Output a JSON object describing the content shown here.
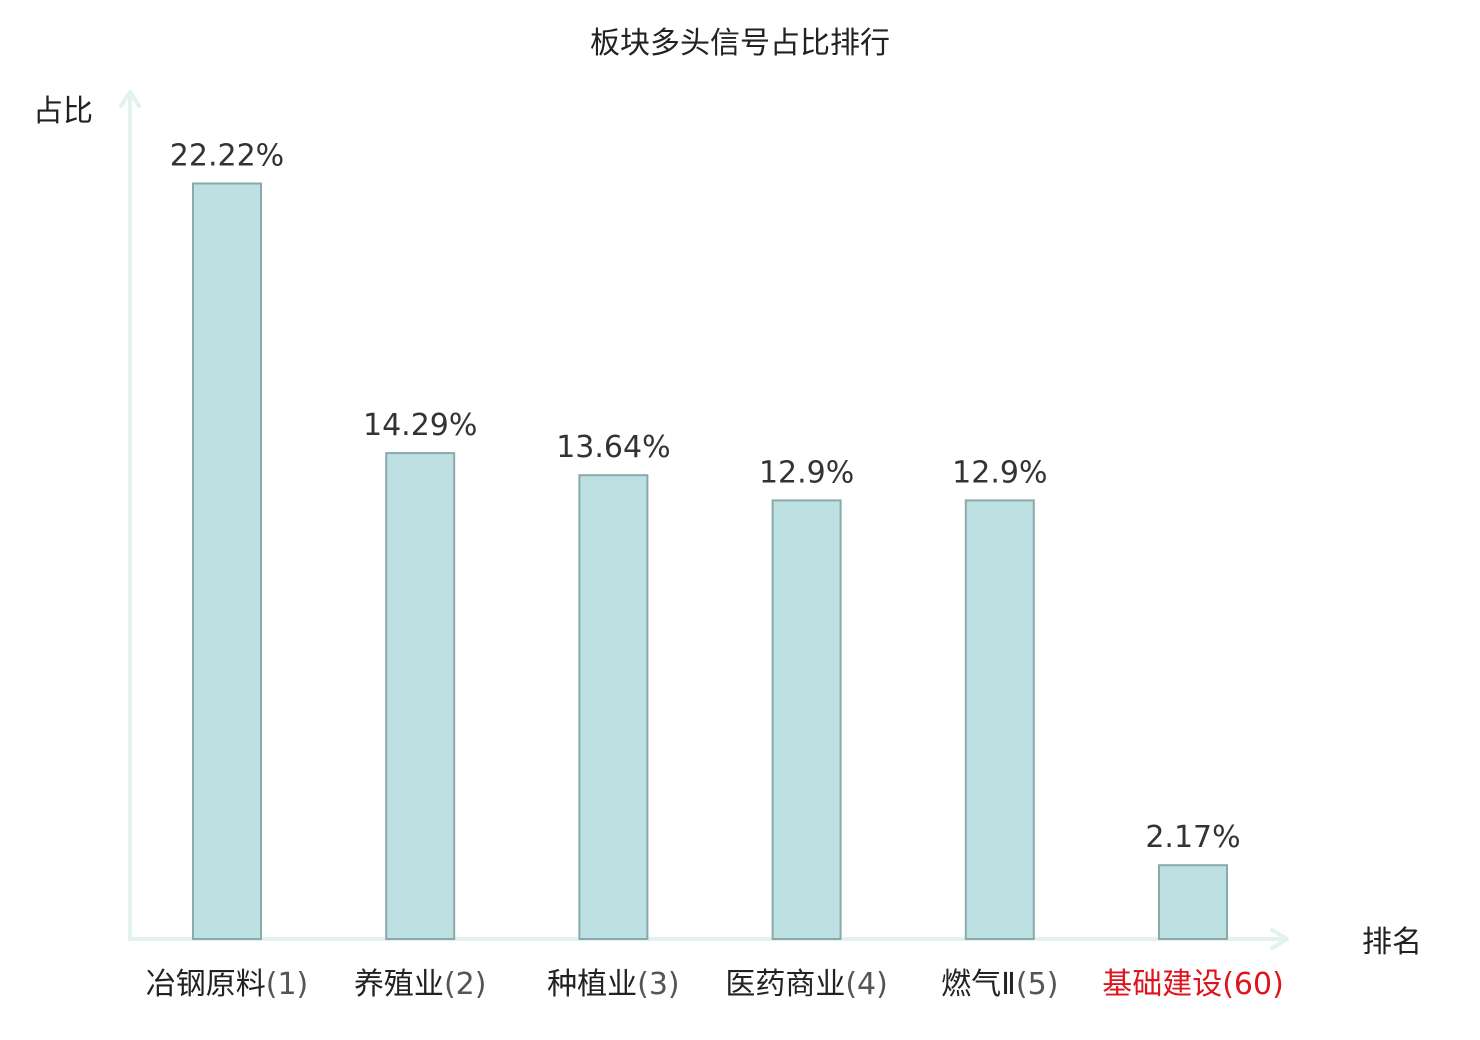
{
  "chart_data": {
    "type": "bar",
    "title": "板块多头信号占比排行",
    "ylabel": "占比",
    "xlabel": "排名",
    "ylim": [
      0,
      25
    ],
    "grid": false,
    "legend": "none",
    "categories": [
      {
        "name": "冶钢原料",
        "rank": "(1)"
      },
      {
        "name": "养殖业",
        "rank": "(2)"
      },
      {
        "name": "种植业",
        "rank": "(3)"
      },
      {
        "name": "医药商业",
        "rank": "(4)"
      },
      {
        "name": "燃气Ⅱ",
        "rank": "(5)"
      },
      {
        "name": "基础建设",
        "rank": "(60)"
      }
    ],
    "values": [
      22.22,
      14.29,
      13.64,
      12.9,
      12.9,
      2.17
    ],
    "value_labels": [
      "22.22%",
      "14.29%",
      "13.64%",
      "12.9%",
      "12.9%",
      "2.17%"
    ],
    "highlight_index": 5,
    "colors": {
      "bar_fill": "#bde0e3",
      "bar_stroke": "#8aa9ab",
      "axis": "#e2f2ee",
      "highlight_label": "#e0141e"
    }
  }
}
